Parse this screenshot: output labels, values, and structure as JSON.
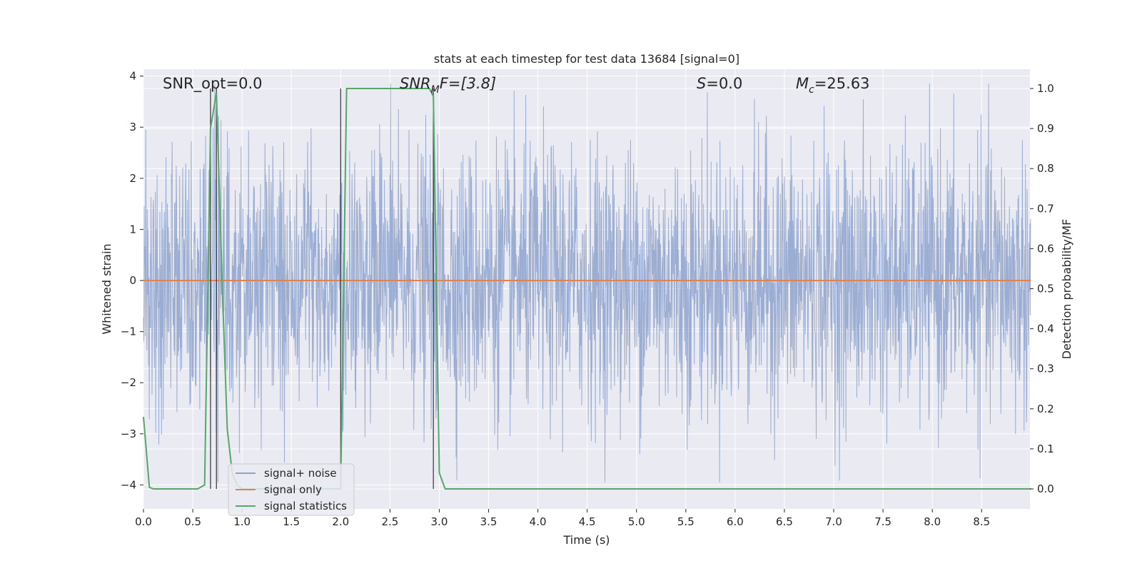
{
  "chart_data": {
    "type": "line",
    "title": "stats at each timestep for test data 13684 [signal=0]",
    "xlabel": "Time (s)",
    "ylabel_left": "Whitened strain",
    "ylabel_right": "Detection probability/MF",
    "xlim": [
      0.0,
      9.0
    ],
    "ylim_left": [
      -4.3,
      4.2
    ],
    "ylim_right": [
      -0.05,
      1.04
    ],
    "x_ticks": [
      "0.0",
      "0.5",
      "1.0",
      "1.5",
      "2.0",
      "2.5",
      "3.0",
      "3.5",
      "4.0",
      "4.5",
      "5.0",
      "5.5",
      "6.0",
      "6.5",
      "7.0",
      "7.5",
      "8.0",
      "8.5"
    ],
    "y_left_ticks": [
      "4",
      "3",
      "2",
      "1",
      "0",
      "−1",
      "−2",
      "−3",
      "−4"
    ],
    "y_right_ticks": [
      "1.0",
      "0.9",
      "0.8",
      "0.7",
      "0.6",
      "0.5",
      "0.4",
      "0.3",
      "0.2",
      "0.1",
      "0.0"
    ],
    "grid": true,
    "legend_position": "lower-left",
    "annotations": {
      "snr_opt": "SNR_opt=0.0",
      "snr_mf_main": "SNR",
      "snr_mf_sub": "M",
      "snr_mf_rest": "F=[3.8]",
      "s_main": "S",
      "s_rest": "=0.0",
      "mc_main": "M",
      "mc_sub": "c",
      "mc_rest": "=25.63"
    },
    "series": [
      {
        "name": "signal+ noise",
        "color": "#8da2cc",
        "description_values": "whitened strain noise ~ N(0,1), range about -4 to 4"
      },
      {
        "name": "signal only",
        "color": "#dd8452",
        "x": [
          0.0,
          9.0
        ],
        "y": [
          0.0,
          0.0
        ]
      },
      {
        "name": "signal statistics",
        "color": "#55a868",
        "x": [
          0.0,
          0.06,
          0.1,
          0.2,
          0.3,
          0.4,
          0.5,
          0.55,
          0.62,
          0.68,
          0.74,
          0.8,
          0.85,
          0.9,
          0.95,
          1.0,
          1.2,
          1.5,
          1.8,
          1.9,
          1.96,
          2.0,
          2.06,
          2.2,
          2.4,
          2.5,
          2.7,
          2.9,
          2.94,
          3.0,
          3.06,
          3.2,
          4.0,
          5.0,
          6.0,
          7.0,
          8.0,
          9.0
        ],
        "y": [
          0.18,
          0.004,
          0.0,
          0.0,
          0.0,
          0.0,
          0.0,
          0.0,
          0.01,
          0.9,
          0.99,
          0.5,
          0.15,
          0.04,
          0.01,
          0.0,
          0.0,
          0.0,
          0.0,
          0.0,
          0.0,
          0.0,
          1.0,
          1.0,
          1.0,
          1.0,
          1.0,
          1.0,
          0.98,
          0.04,
          0.0,
          0.0,
          0.0,
          0.0,
          0.0,
          0.0,
          0.0,
          0.0
        ]
      }
    ],
    "vlines_x": [
      0.68,
      0.74,
      2.0,
      2.94
    ]
  }
}
